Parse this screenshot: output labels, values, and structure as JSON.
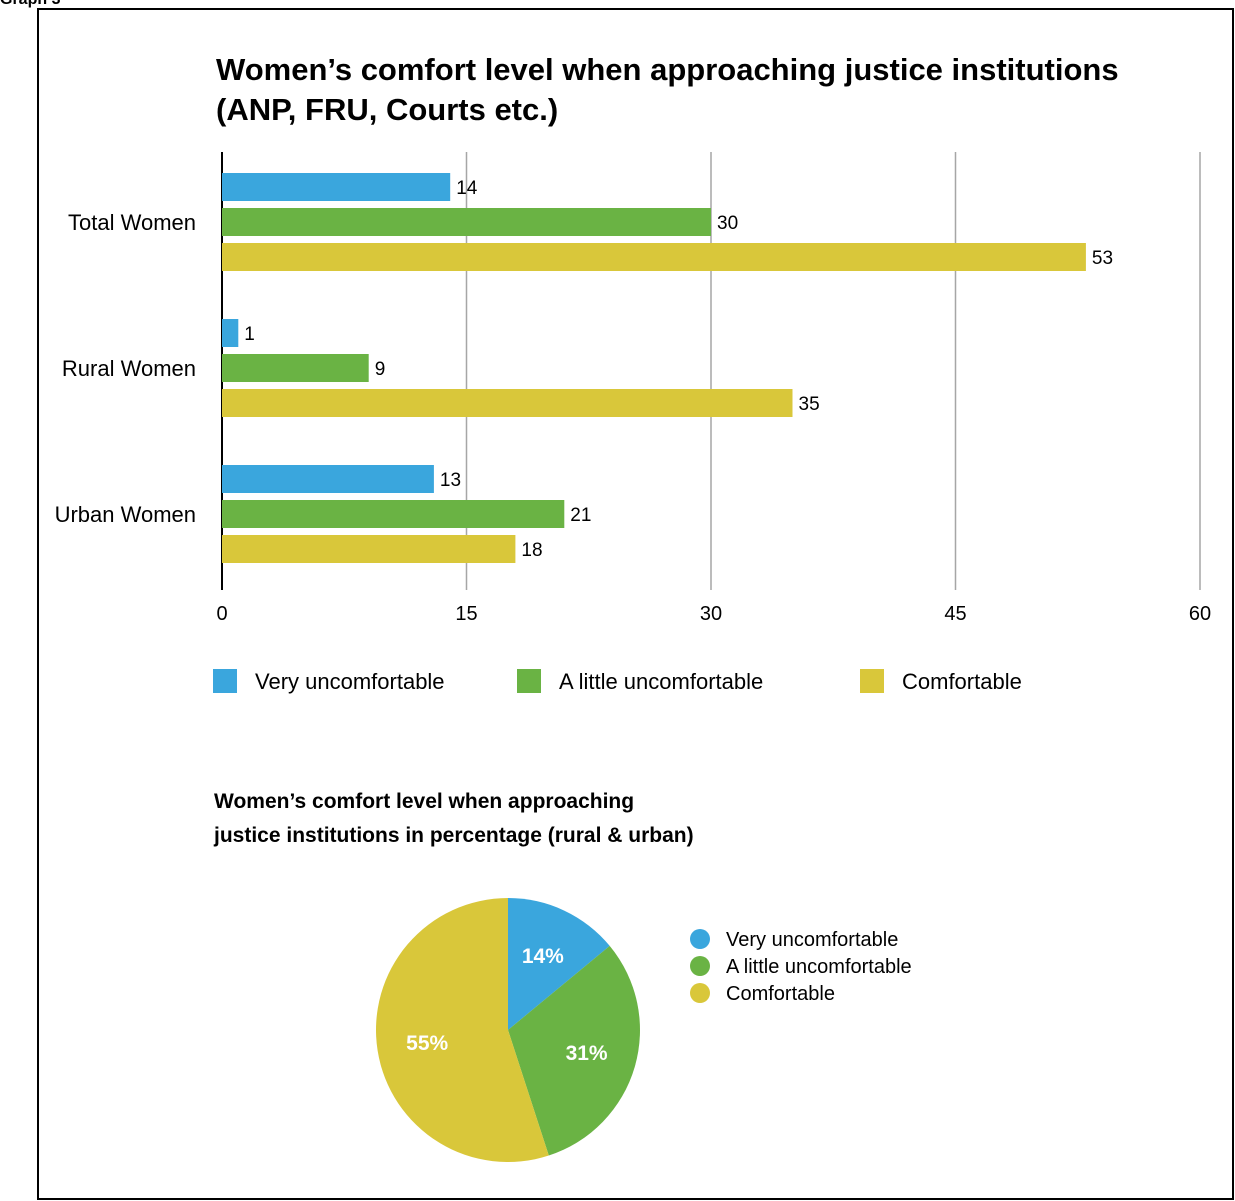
{
  "page_caption": "Graph 3",
  "chart_data": [
    {
      "type": "bar",
      "orientation": "horizontal",
      "title_lines": [
        "Women’s comfort level when approaching justice institutions",
        "(ANP, FRU, Courts etc.)"
      ],
      "categories": [
        "Total Women",
        "Rural Women",
        "Urban Women"
      ],
      "series": [
        {
          "name": "Very uncomfortable",
          "color": "#3aa6dd",
          "values": [
            14,
            1,
            13
          ]
        },
        {
          "name": "A little uncomfortable",
          "color": "#6ab344",
          "values": [
            30,
            9,
            21
          ]
        },
        {
          "name": "Comfortable",
          "color": "#d9c73a",
          "values": [
            53,
            35,
            18
          ]
        }
      ],
      "xlim": [
        0,
        60
      ],
      "xticks": [
        0,
        15,
        30,
        45,
        60
      ],
      "grid": true,
      "legend_position": "bottom"
    },
    {
      "type": "pie",
      "title_lines": [
        "Women’s comfort level when approaching",
        "justice institutions in percentage (rural & urban)"
      ],
      "slices": [
        {
          "name": "Very uncomfortable",
          "value": 14,
          "label": "14%",
          "color": "#3aa6dd"
        },
        {
          "name": "A little uncomfortable",
          "value": 31,
          "label": "31%",
          "color": "#6ab344"
        },
        {
          "name": "Comfortable",
          "value": 55,
          "label": "55%",
          "color": "#d9c73a"
        }
      ],
      "legend_position": "right"
    }
  ]
}
